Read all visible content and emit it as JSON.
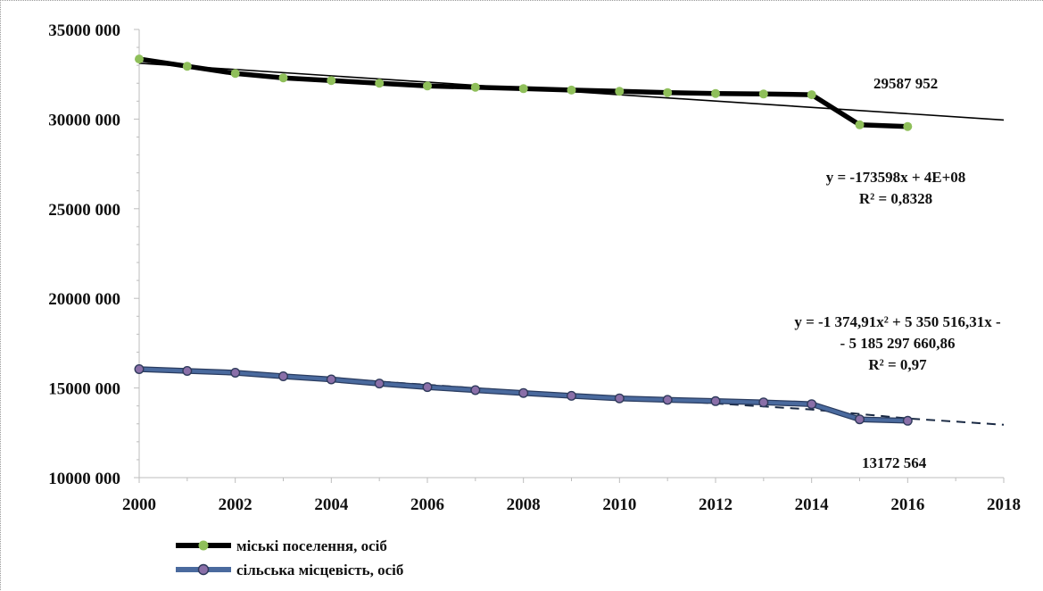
{
  "chart_data": {
    "type": "line",
    "xlim": [
      2000,
      2018
    ],
    "ylim": [
      10000000,
      35000000
    ],
    "x_ticks": [
      "2000",
      "2002",
      "2004",
      "2006",
      "2008",
      "2010",
      "2012",
      "2014",
      "2016",
      "2018"
    ],
    "x_tick_values": [
      2000,
      2002,
      2004,
      2006,
      2008,
      2010,
      2012,
      2014,
      2016,
      2018
    ],
    "y_ticks": [
      "10000 000",
      "15000 000",
      "20000 000",
      "25000 000",
      "30000 000",
      "35000 000"
    ],
    "y_tick_values": [
      10000000,
      15000000,
      20000000,
      25000000,
      30000000,
      35000000
    ],
    "x": [
      2000,
      2001,
      2002,
      2003,
      2004,
      2005,
      2006,
      2007,
      2008,
      2009,
      2010,
      2011,
      2012,
      2013,
      2014,
      2015,
      2016
    ],
    "series": [
      {
        "name": "міські поселення, осіб",
        "line_color": "#000000",
        "marker_color": "#8fbf5a",
        "values": [
          33350000,
          32950000,
          32550000,
          32300000,
          32150000,
          32000000,
          31850000,
          31780000,
          31700000,
          31620000,
          31550000,
          31480000,
          31430000,
          31400000,
          31360000,
          29680000,
          29587952
        ],
        "trendline": {
          "type": "linear",
          "from": [
            2000,
            33120000
          ],
          "to": [
            2018,
            29950000
          ],
          "color": "#000000",
          "style": "solid"
        },
        "equation": [
          "y = -173598x + 4E+08",
          "R² = 0,8328"
        ],
        "end_label": "29587 952"
      },
      {
        "name": "сільська місцевість, осіб",
        "line_color": "#4a6a9e",
        "marker_color": "#8a6fa8",
        "values": [
          16050000,
          15950000,
          15850000,
          15650000,
          15480000,
          15250000,
          15050000,
          14880000,
          14720000,
          14560000,
          14420000,
          14340000,
          14270000,
          14200000,
          14100000,
          13250000,
          13172564
        ],
        "trendline": {
          "type": "polynomial",
          "points": [
            [
              2000,
              16080000
            ],
            [
              2002,
              15850000
            ],
            [
              2004,
              15540000
            ],
            [
              2006,
              15180000
            ],
            [
              2008,
              14800000
            ],
            [
              2010,
              14440000
            ],
            [
              2012,
              14140000
            ],
            [
              2014,
              13800000
            ],
            [
              2016,
              13300000
            ],
            [
              2018,
              12950000
            ]
          ],
          "color": "#1a2a44",
          "style": "dashed"
        },
        "equation": [
          "y = -1 374,91x² + 5 350 516,31x -",
          "- 5 185 297 660,86",
          "R² = 0,97"
        ],
        "end_label": "13172 564"
      }
    ],
    "grid": false,
    "legend_position": "bottom-left"
  }
}
